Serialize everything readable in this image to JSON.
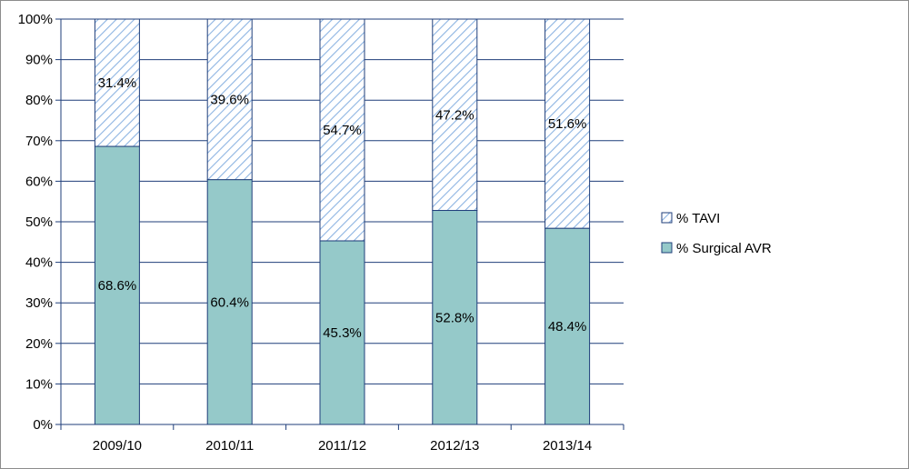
{
  "chart_data": {
    "type": "bar",
    "stacked": true,
    "categories": [
      "2009/10",
      "2010/11",
      "2011/12",
      "2012/13",
      "2013/14"
    ],
    "series": [
      {
        "name": "% Surgical AVR",
        "values": [
          68.6,
          60.4,
          45.3,
          52.8,
          48.4
        ],
        "labels": [
          "68.6%",
          "60.4%",
          "45.3%",
          "52.8%",
          "48.4%"
        ],
        "color": "#95c9c9",
        "pattern": "solid"
      },
      {
        "name": "% TAVI",
        "values": [
          31.4,
          39.6,
          54.7,
          47.2,
          51.6
        ],
        "labels": [
          "31.4%",
          "39.6%",
          "54.7%",
          "47.2%",
          "51.6%"
        ],
        "color": "#8db4e2",
        "pattern": "diagonal-hatch"
      }
    ],
    "ylim": [
      0,
      100
    ],
    "yticks": [
      "0%",
      "10%",
      "20%",
      "30%",
      "40%",
      "50%",
      "60%",
      "70%",
      "80%",
      "90%",
      "100%"
    ],
    "grid": true,
    "legend": "right",
    "outline_color": "#1f3e7a",
    "title": "",
    "xlabel": "",
    "ylabel": ""
  }
}
